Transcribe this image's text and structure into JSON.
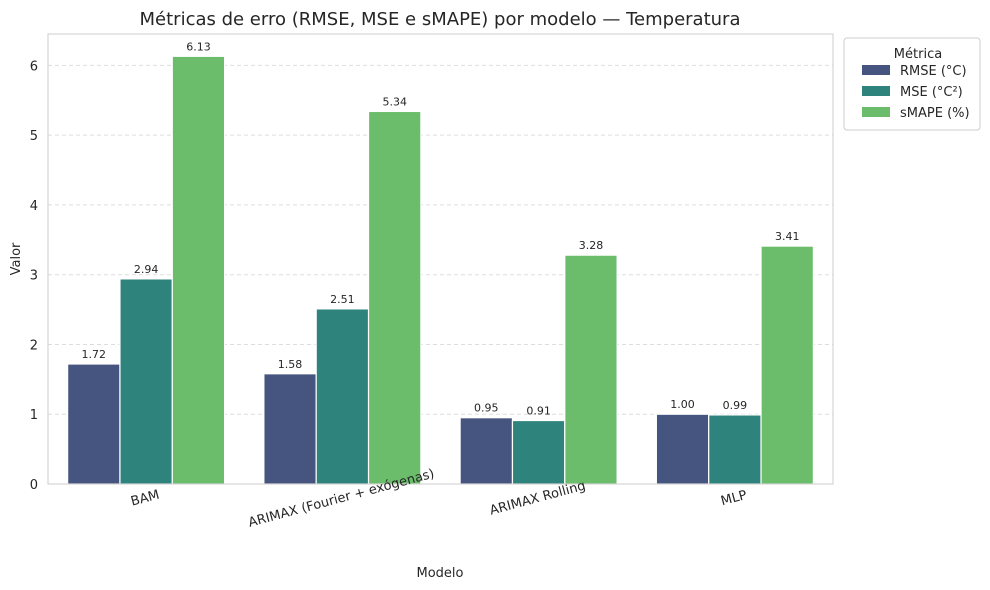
{
  "chart_data": {
    "type": "bar",
    "title": "Métricas de erro (RMSE, MSE e sMAPE) por modelo — Temperatura",
    "xlabel": "Modelo",
    "ylabel": "Valor",
    "categories": [
      "BAM",
      "ARIMAX (Fourier + exógenas)",
      "ARIMAX Rolling",
      "MLP"
    ],
    "series": [
      {
        "name": "RMSE (°C)",
        "values": [
          1.72,
          1.58,
          0.95,
          1.0
        ],
        "labels": [
          "1.72",
          "1.58",
          "0.95",
          "1.00"
        ],
        "color": "#46557f"
      },
      {
        "name": "MSE (°C²)",
        "values": [
          2.94,
          2.51,
          0.91,
          0.99
        ],
        "labels": [
          "2.94",
          "2.51",
          "0.91",
          "0.99"
        ],
        "color": "#2e847c"
      },
      {
        "name": "sMAPE (%)",
        "values": [
          6.13,
          5.34,
          3.28,
          3.41
        ],
        "labels": [
          "6.13",
          "5.34",
          "3.28",
          "3.41"
        ],
        "color": "#6bbd6c"
      }
    ],
    "ylim": [
      0,
      6.45
    ],
    "yticks": [
      "0",
      "1",
      "2",
      "3",
      "4",
      "5",
      "6"
    ],
    "grid": true,
    "legend": {
      "title": "Métrica",
      "placement": "outside-top-right"
    }
  }
}
